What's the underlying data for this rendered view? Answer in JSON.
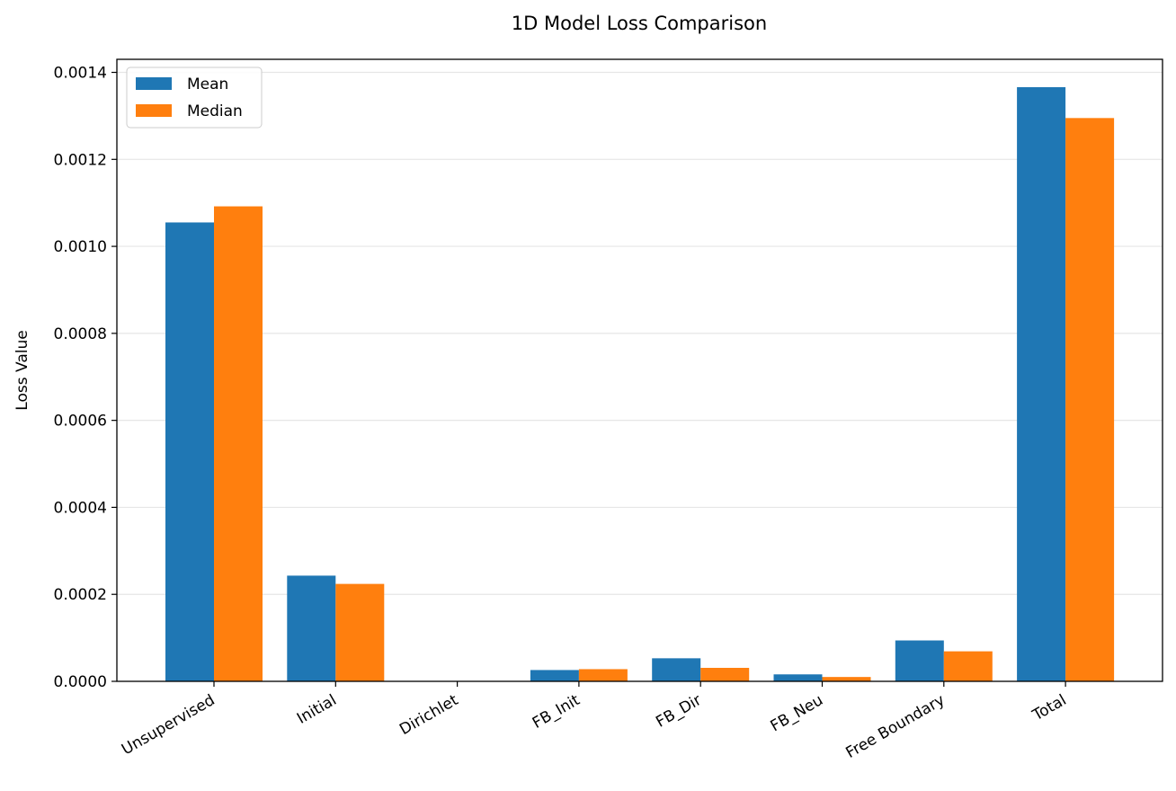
{
  "chart_data": {
    "type": "bar",
    "title": "1D Model Loss Comparison",
    "xlabel": "",
    "ylabel": "Loss Value",
    "categories": [
      "Unsupervised",
      "Initial",
      "Dirichlet",
      "FB_Init",
      "FB_Dir",
      "FB_Neu",
      "Free Boundary",
      "Total"
    ],
    "series": [
      {
        "name": "Mean",
        "color": "#1f77b4",
        "values": [
          0.001055,
          0.000243,
          0.0,
          2.6e-05,
          5.3e-05,
          1.6e-05,
          9.4e-05,
          0.001366
        ]
      },
      {
        "name": "Median",
        "color": "#ff7f0e",
        "values": [
          0.001092,
          0.000224,
          0.0,
          2.8e-05,
          3.1e-05,
          1e-05,
          6.9e-05,
          0.001295
        ]
      }
    ],
    "ylim": [
      0,
      0.00143
    ],
    "yticks": [
      "0.0000",
      "0.0002",
      "0.0004",
      "0.0006",
      "0.0008",
      "0.0010",
      "0.0012",
      "0.0014"
    ],
    "grid": "y",
    "legend_position": "top-left"
  }
}
